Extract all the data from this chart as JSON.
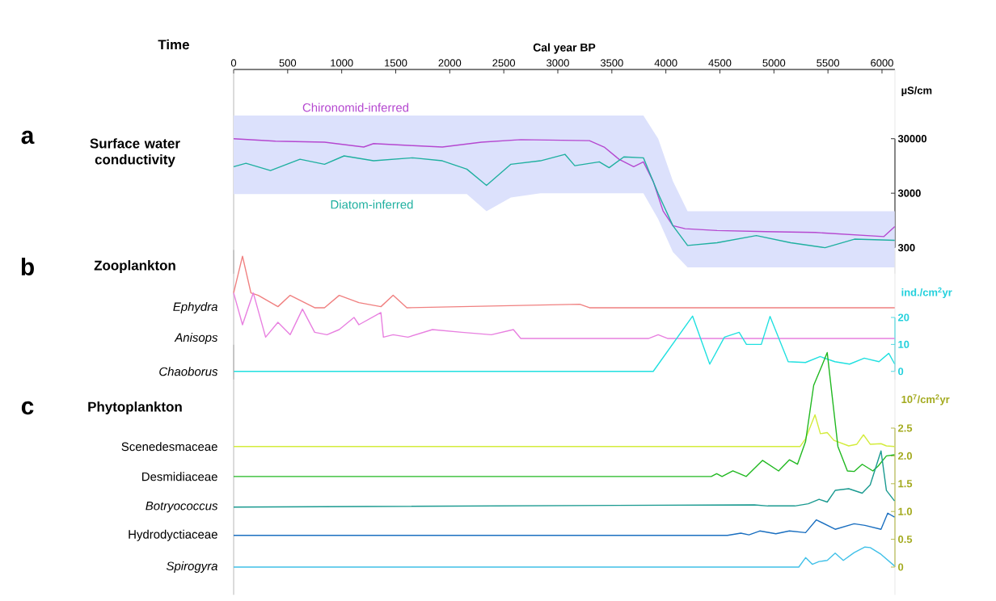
{
  "chart_data": [
    {
      "type": "line",
      "title": "Surface water conductivity",
      "xlabel": "Cal year BP",
      "ylabel": "µS/cm",
      "annotations": [
        "a",
        "Time"
      ],
      "log": "y",
      "xlim": [
        0,
        6120
      ],
      "xticks": [
        0,
        500,
        1000,
        1500,
        2000,
        2500,
        3000,
        3500,
        4000,
        4500,
        5000,
        5500,
        6000
      ],
      "ylim": [
        100,
        560000
      ],
      "yticks": [
        300,
        3000,
        30000
      ],
      "series": [
        {
          "name": "Chironomid-inferred",
          "color": "#b548d0",
          "x": [
            0,
            387,
            841,
            1204,
            1295,
            1658,
            1931,
            2294,
            2657,
            3293,
            3429,
            3566,
            3702,
            3792,
            3883,
            3974,
            4065,
            4178,
            4474,
            4928,
            5382,
            6018,
            6118
          ],
          "values": [
            30000,
            27000,
            25900,
            21100,
            24400,
            22400,
            21100,
            25900,
            28800,
            27600,
            21100,
            12600,
            9200,
            11300,
            4930,
            1420,
            760,
            670,
            620,
            590,
            570,
            480,
            730
          ]
        },
        {
          "name": "Diatom-inferred",
          "color": "#20b0a0",
          "x": [
            0,
            114,
            341,
            614,
            841,
            1022,
            1295,
            1658,
            1931,
            2158,
            2340,
            2566,
            2839,
            3066,
            3157,
            3384,
            3475,
            3611,
            3792,
            3929,
            4065,
            4201,
            4474,
            4837,
            5155,
            5473,
            5745,
            6118
          ],
          "values": [
            9200,
            10600,
            7800,
            12600,
            10200,
            14500,
            11800,
            13400,
            11800,
            8300,
            4180,
            10200,
            11800,
            15500,
            9600,
            11300,
            8800,
            13900,
            13400,
            2940,
            760,
            330,
            370,
            500,
            370,
            300,
            430,
            410
          ],
          "lower": [
            2900,
            2900,
            2900,
            2900,
            2900,
            2900,
            2900,
            2900,
            2900,
            2900,
            1400,
            2500,
            3000,
            3000,
            3000,
            3000,
            3000,
            3000,
            3000,
            1000,
            250,
            130,
            130,
            130,
            130,
            130,
            130,
            130
          ],
          "upper": [
            80000,
            80000,
            80000,
            80000,
            80000,
            80000,
            80000,
            80000,
            80000,
            80000,
            80000,
            80000,
            80000,
            80000,
            80000,
            80000,
            80000,
            80000,
            80000,
            30000,
            5000,
            1400,
            1400,
            1400,
            1400,
            1400,
            1400,
            1400
          ]
        }
      ]
    },
    {
      "type": "line",
      "title": "Zooplankton",
      "ylabel": "ind./cm$^{2}$yr",
      "annotations": [
        "b"
      ],
      "tick_labels": "y",
      "xlim": [
        0,
        6120
      ],
      "ylim": [
        -3,
        45
      ],
      "yticks": [
        0,
        10,
        20
      ],
      "series": [
        {
          "name": "*Ephydra*",
          "color": "#f08080",
          "x": [
            0,
            82,
            160,
            228,
            410,
            523,
            750,
            841,
            977,
            1159,
            1363,
            1476,
            1603,
            3203,
            3293,
            6118
          ],
          "values": [
            29.1,
            42.7,
            29.1,
            28.2,
            24,
            28.2,
            23.6,
            23.6,
            28.2,
            25.5,
            24,
            28.2,
            23.6,
            24.9,
            23.6,
            23.6
          ]
        },
        {
          "name": "*Anisops*",
          "color": "#e880e0",
          "x": [
            0,
            82,
            182,
            296,
            410,
            523,
            637,
            750,
            864,
            977,
            1114,
            1159,
            1363,
            1386,
            1476,
            1613,
            1840,
            2112,
            2385,
            2589,
            2657,
            3838,
            3929,
            4019,
            6118
          ],
          "values": [
            29.1,
            17.3,
            29.1,
            12.7,
            18.2,
            13.6,
            23.1,
            14.5,
            13.6,
            15.5,
            20,
            17.3,
            21.8,
            12.7,
            13.6,
            12.7,
            15.5,
            14.5,
            13.6,
            15.5,
            12.2,
            12.2,
            13.6,
            12.2,
            12.2
          ]
        },
        {
          "name": "*Chaoborus*",
          "color": "#20e0e0",
          "x": [
            0,
            3883,
            4247,
            4406,
            4542,
            4678,
            4746,
            4883,
            4964,
            5132,
            5292,
            5428,
            5564,
            5700,
            5836,
            5972,
            6063,
            6118
          ],
          "values": [
            0,
            0,
            20.5,
            2.7,
            12.7,
            14.5,
            10,
            10,
            20.4,
            3.6,
            3.3,
            5.5,
            3.6,
            2.7,
            4.9,
            3.6,
            6.7,
            2.7
          ]
        }
      ]
    },
    {
      "type": "line",
      "title": "Phytoplankton",
      "ylabel": "10$^{7}$/cm$^{2}$yr",
      "annotations": [
        "c"
      ],
      "tick_labels": "y",
      "xlim": [
        0,
        6120
      ],
      "ylim": [
        -0.5,
        4.0
      ],
      "yticks": [
        0,
        0.5,
        {
          "value": 1,
          "label": "1.0"
        },
        1.5,
        {
          "value": 2,
          "label": "2.0"
        },
        2.5
      ],
      "series": [
        {
          "name": "Scenedesmaceae",
          "color": "#d4ec3c",
          "x": [
            0,
            5243,
            5293,
            5380,
            5430,
            5493,
            5555,
            5692,
            5767,
            5829,
            5891,
            5991,
            6041,
            6116
          ],
          "values": [
            2.17,
            2.17,
            2.31,
            2.74,
            2.4,
            2.42,
            2.28,
            2.18,
            2.21,
            2.38,
            2.21,
            2.22,
            2.18,
            2.17
          ]
        },
        {
          "name": "Desmidiaceae",
          "color": "#20b820",
          "x": [
            0,
            4420,
            4470,
            4520,
            4620,
            4744,
            4894,
            5043,
            5143,
            5218,
            5293,
            5368,
            5443,
            5493,
            5592,
            5680,
            5742,
            5817,
            5916,
            5966,
            6041,
            6116
          ],
          "values": [
            1.63,
            1.63,
            1.68,
            1.63,
            1.73,
            1.63,
            1.92,
            1.73,
            1.93,
            1.85,
            2.26,
            3.27,
            3.62,
            3.86,
            2.17,
            1.73,
            1.72,
            1.85,
            1.73,
            1.82,
            2.0,
            2.02
          ]
        },
        {
          "name": "*Botryococcus*",
          "color": "#1a9a90",
          "x": [
            0,
            4819,
            4944,
            5193,
            5318,
            5418,
            5493,
            5567,
            5692,
            5817,
            5891,
            5991,
            6041,
            6116
          ],
          "values": [
            1.08,
            1.12,
            1.1,
            1.1,
            1.14,
            1.22,
            1.17,
            1.38,
            1.41,
            1.33,
            1.48,
            2.09,
            1.38,
            1.19
          ]
        },
        {
          "name": "Hydrodyctiaceae",
          "color": "#1a6fc0",
          "x": [
            0,
            4570,
            4694,
            4769,
            4869,
            5018,
            5143,
            5293,
            5393,
            5567,
            5742,
            5842,
            5991,
            6053,
            6116
          ],
          "values": [
            0.57,
            0.57,
            0.61,
            0.58,
            0.65,
            0.6,
            0.65,
            0.62,
            0.85,
            0.68,
            0.78,
            0.75,
            0.68,
            0.97,
            0.9
          ]
        },
        {
          "name": "*Spirogyra*",
          "color": "#40c0e8",
          "x": [
            0,
            5230,
            5293,
            5355,
            5418,
            5493,
            5567,
            5642,
            5742,
            5842,
            5891,
            5991,
            6116
          ],
          "values": [
            0,
            0,
            0.17,
            0.05,
            0.1,
            0.12,
            0.25,
            0.12,
            0.26,
            0.36,
            0.35,
            0.23,
            0.02
          ]
        }
      ]
    }
  ]
}
